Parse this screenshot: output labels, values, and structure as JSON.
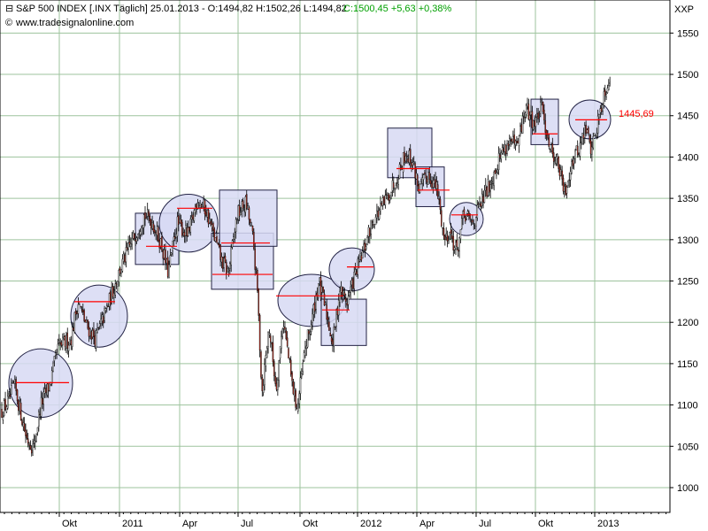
{
  "header": {
    "instrument": "S&P 500 INDEX [.INX  Täglich] 25.01.2013 - O:1494,82 H:1502,26 L:1494,82",
    "change": "C:1500,45 +5,63 +0,38%",
    "source": "www.tradesignalonline.com",
    "exchange": "XXP"
  },
  "colors": {
    "up_candle": "#ffffff",
    "down_candle": "#c0392b",
    "wick": "#000000",
    "grid": "#9dc39d",
    "pattern_fill": "#d7d9f3",
    "pattern_stroke": "#222244",
    "neckline": "#ff0000",
    "price_label": "#ff0000",
    "change_text": "#00a000"
  },
  "chart_data": {
    "type": "candlestick",
    "title": "S&P 500 INDEX [.INX  Täglich]",
    "ylim": [
      970,
      1590
    ],
    "y_ticks": [
      1000,
      1050,
      1100,
      1150,
      1200,
      1250,
      1300,
      1350,
      1400,
      1450,
      1500,
      1550
    ],
    "x_ticks": [
      "Okt",
      "2011",
      "Apr",
      "Jul",
      "Okt",
      "2012",
      "Apr",
      "Jul",
      "Okt",
      "2013"
    ],
    "grid": true,
    "last_price_label": "1445,69",
    "anchors": [
      [
        0,
        1090
      ],
      [
        10,
        1105
      ],
      [
        16,
        1125
      ],
      [
        30,
        1060
      ],
      [
        38,
        1048
      ],
      [
        46,
        1100
      ],
      [
        56,
        1125
      ],
      [
        66,
        1170
      ],
      [
        80,
        1180
      ],
      [
        88,
        1225
      ],
      [
        98,
        1195
      ],
      [
        108,
        1180
      ],
      [
        120,
        1215
      ],
      [
        136,
        1265
      ],
      [
        150,
        1300
      ],
      [
        163,
        1330
      ],
      [
        172,
        1322
      ],
      [
        182,
        1295
      ],
      [
        190,
        1260
      ],
      [
        200,
        1320
      ],
      [
        213,
        1305
      ],
      [
        223,
        1350
      ],
      [
        233,
        1335
      ],
      [
        243,
        1300
      ],
      [
        250,
        1275
      ],
      [
        258,
        1260
      ],
      [
        268,
        1330
      ],
      [
        278,
        1345
      ],
      [
        286,
        1300
      ],
      [
        291,
        1235
      ],
      [
        296,
        1115
      ],
      [
        304,
        1195
      ],
      [
        312,
        1120
      ],
      [
        320,
        1205
      ],
      [
        330,
        1125
      ],
      [
        336,
        1095
      ],
      [
        345,
        1170
      ],
      [
        352,
        1200
      ],
      [
        360,
        1250
      ],
      [
        368,
        1215
      ],
      [
        376,
        1175
      ],
      [
        384,
        1240
      ],
      [
        392,
        1225
      ],
      [
        402,
        1260
      ],
      [
        412,
        1290
      ],
      [
        420,
        1320
      ],
      [
        432,
        1340
      ],
      [
        446,
        1370
      ],
      [
        458,
        1405
      ],
      [
        466,
        1395
      ],
      [
        474,
        1360
      ],
      [
        484,
        1380
      ],
      [
        494,
        1360
      ],
      [
        502,
        1300
      ],
      [
        508,
        1310
      ],
      [
        516,
        1285
      ],
      [
        524,
        1330
      ],
      [
        534,
        1320
      ],
      [
        544,
        1345
      ],
      [
        556,
        1375
      ],
      [
        566,
        1405
      ],
      [
        576,
        1420
      ],
      [
        584,
        1410
      ],
      [
        594,
        1460
      ],
      [
        604,
        1440
      ],
      [
        612,
        1460
      ],
      [
        622,
        1410
      ],
      [
        630,
        1395
      ],
      [
        638,
        1355
      ],
      [
        646,
        1395
      ],
      [
        654,
        1410
      ],
      [
        662,
        1435
      ],
      [
        668,
        1410
      ],
      [
        674,
        1435
      ],
      [
        682,
        1475
      ],
      [
        690,
        1500
      ]
    ],
    "patterns": [
      {
        "shape": "ellipse",
        "x_from": 10,
        "x_to": 82,
        "y_low": 1085,
        "y_high": 1168,
        "neckline": 1127,
        "neck_from": 18,
        "neck_to": 78
      },
      {
        "shape": "ellipse",
        "x_from": 80,
        "x_to": 144,
        "y_low": 1170,
        "y_high": 1245,
        "neckline": 1225,
        "neck_from": 84,
        "neck_to": 130
      },
      {
        "shape": "rect",
        "x_from": 153,
        "x_to": 202,
        "y_low": 1270,
        "y_high": 1332,
        "neckline": 1292,
        "neck_from": 165,
        "neck_to": 200
      },
      {
        "shape": "ellipse",
        "x_from": 180,
        "x_to": 246,
        "y_low": 1285,
        "y_high": 1355,
        "neckline": 1338,
        "neck_from": 200,
        "neck_to": 240
      },
      {
        "shape": "rect",
        "x_from": 239,
        "x_to": 309,
        "y_low": 1240,
        "y_high": 1308,
        "neckline": 1258,
        "neck_from": 240,
        "neck_to": 308
      },
      {
        "shape": "rect",
        "x_from": 248,
        "x_to": 313,
        "y_low": 1292,
        "y_high": 1360,
        "neckline": 1296,
        "neck_from": 250,
        "neck_to": 305
      },
      {
        "shape": "ellipse",
        "x_from": 314,
        "x_to": 390,
        "y_low": 1195,
        "y_high": 1258,
        "neckline": 1232,
        "neck_from": 312,
        "neck_to": 388
      },
      {
        "shape": "rect",
        "x_from": 363,
        "x_to": 414,
        "y_low": 1172,
        "y_high": 1228,
        "neckline": 1215,
        "neck_from": 364,
        "neck_to": 395
      },
      {
        "shape": "ellipse",
        "x_from": 372,
        "x_to": 423,
        "y_low": 1238,
        "y_high": 1290,
        "neckline": 1267,
        "neck_from": 392,
        "neck_to": 422
      },
      {
        "shape": "rect",
        "x_from": 438,
        "x_to": 488,
        "y_low": 1375,
        "y_high": 1435,
        "neckline": 1386,
        "neck_from": 448,
        "neck_to": 486
      },
      {
        "shape": "rect",
        "x_from": 470,
        "x_to": 502,
        "y_low": 1340,
        "y_high": 1388,
        "neckline": 1360,
        "neck_from": 472,
        "neck_to": 508
      },
      {
        "shape": "ellipse",
        "x_from": 508,
        "x_to": 546,
        "y_low": 1305,
        "y_high": 1345,
        "neckline": 1330,
        "neck_from": 510,
        "neck_to": 540
      },
      {
        "shape": "rect",
        "x_from": 600,
        "x_to": 631,
        "y_low": 1415,
        "y_high": 1470,
        "neckline": 1428,
        "neck_from": 602,
        "neck_to": 630
      },
      {
        "shape": "ellipse",
        "x_from": 643,
        "x_to": 690,
        "y_low": 1422,
        "y_high": 1469,
        "neckline": 1445,
        "neck_from": 650,
        "neck_to": 686
      }
    ]
  }
}
